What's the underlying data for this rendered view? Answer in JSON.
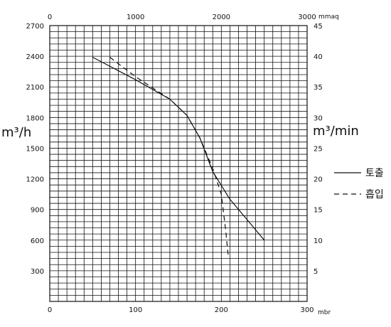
{
  "chart_data": {
    "type": "line",
    "grid": true,
    "legend_position": "right",
    "colors": {
      "line": "#111111",
      "grid": "#111111",
      "background": "#ffffff"
    },
    "axes": {
      "left": {
        "label": "m³/h",
        "range": [
          0,
          2700
        ],
        "ticks": [
          300,
          600,
          900,
          1200,
          1500,
          1800,
          2100,
          2400,
          2700
        ],
        "tick_labels": [
          "300",
          "600",
          "900",
          "1200",
          "1500",
          "1800",
          "2100",
          "2400",
          "2700"
        ]
      },
      "right": {
        "label": "m³/min",
        "range": [
          0,
          45
        ],
        "ticks": [
          5,
          10,
          15,
          20,
          25,
          30,
          35,
          40,
          45
        ],
        "tick_labels": [
          "5",
          "10",
          "15",
          "20",
          "25",
          "30",
          "35",
          "40",
          "45"
        ]
      },
      "bottom": {
        "label": "mbr",
        "range": [
          0,
          300
        ],
        "ticks": [
          0,
          100,
          200,
          300
        ],
        "tick_labels": [
          "0",
          "100",
          "200",
          "300"
        ]
      },
      "top": {
        "label": "mmaq",
        "range": [
          0,
          3000
        ],
        "ticks": [
          0,
          1000,
          2000,
          3000
        ],
        "tick_labels": [
          "0",
          "1000",
          "2000",
          "3000"
        ]
      }
    },
    "series": [
      {
        "name": "토출",
        "style": "solid",
        "points": [
          {
            "x": 50,
            "y": 2390
          },
          {
            "x": 100,
            "y": 2170
          },
          {
            "x": 140,
            "y": 1980
          },
          {
            "x": 160,
            "y": 1820
          },
          {
            "x": 175,
            "y": 1600
          },
          {
            "x": 190,
            "y": 1270
          },
          {
            "x": 210,
            "y": 1000
          },
          {
            "x": 250,
            "y": 600
          }
        ]
      },
      {
        "name": "흡입",
        "style": "dashed",
        "points": [
          {
            "x": 70,
            "y": 2390
          },
          {
            "x": 100,
            "y": 2200
          },
          {
            "x": 140,
            "y": 1980
          },
          {
            "x": 160,
            "y": 1820
          },
          {
            "x": 175,
            "y": 1600
          },
          {
            "x": 190,
            "y": 1300
          },
          {
            "x": 200,
            "y": 1050
          },
          {
            "x": 205,
            "y": 700
          },
          {
            "x": 208,
            "y": 450
          }
        ]
      }
    ]
  }
}
